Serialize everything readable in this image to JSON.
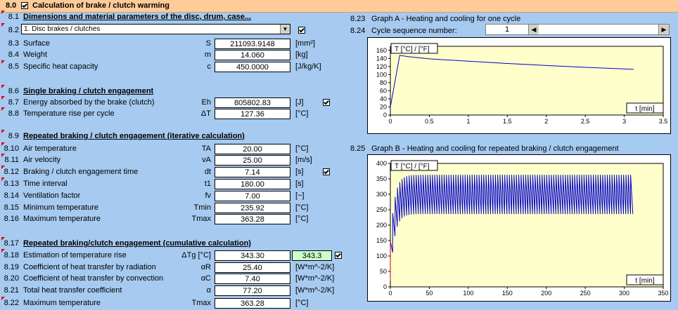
{
  "header": {
    "num": "8.0",
    "title": "Calculation of brake / clutch warming"
  },
  "left": {
    "sec1": {
      "num": "8.1",
      "title": "Dimensions and material parameters of the disc, drum, case..."
    },
    "select_row": {
      "num": "8.2",
      "value": "1. Disc brakes / clutches"
    },
    "rows1": [
      {
        "num": "8.3",
        "label": "Surface",
        "sym": "S",
        "value": "211093.9148",
        "unit": "[mm²]"
      },
      {
        "num": "8.4",
        "label": "Weight",
        "sym": "m",
        "value": "14.060",
        "unit": "[kg]"
      },
      {
        "num": "8.5",
        "label": "Specific heat capacity",
        "sym": "c",
        "value": "450.0000",
        "unit": "[J/kg/K]"
      }
    ],
    "sec2": {
      "num": "8.6",
      "title": "Single braking / clutch engagement"
    },
    "rows2": [
      {
        "num": "8.7",
        "label": "Energy absorbed by the brake (clutch)",
        "sym": "Eh",
        "value": "805802.83",
        "unit": "[J]"
      },
      {
        "num": "8.8",
        "label": "Temperature rise per cycle",
        "sym": "ΔT",
        "value": "127.36",
        "unit": "[°C]"
      }
    ],
    "sec3": {
      "num": "8.9",
      "title": "Repeated braking / clutch engagement (iterative calculation)"
    },
    "rows3": [
      {
        "num": "8.10",
        "label": "Air temperature",
        "sym": "TA",
        "value": "20.00",
        "unit": "[°C]"
      },
      {
        "num": "8.11",
        "label": "Air velocity",
        "sym": "vA",
        "value": "25.00",
        "unit": "[m/s]"
      },
      {
        "num": "8.12",
        "label": "Braking / clutch engagement time",
        "sym": "dt",
        "value": "7.14",
        "unit": "[s]"
      },
      {
        "num": "8.13",
        "label": "Time interval",
        "sym": "t1",
        "value": "180.00",
        "unit": "[s]"
      },
      {
        "num": "8.14",
        "label": "Ventilation factor",
        "sym": "fv",
        "value": "7.00",
        "unit": "[~]"
      },
      {
        "num": "8.15",
        "label": "Minimum temperature",
        "sym": "Tmin",
        "value": "235.92",
        "unit": "[°C]"
      },
      {
        "num": "8.16",
        "label": "Maximum temperature",
        "sym": "Tmax",
        "value": "363.28",
        "unit": "[°C]"
      }
    ],
    "sec4": {
      "num": "8.17",
      "title": "Repeated braking/clutch engagement (cumulative calculation)"
    },
    "rows4": [
      {
        "num": "8.18",
        "label": "Estimation of temperature rise",
        "sym": "ΔTg [°C]",
        "value": "343.30",
        "extra": "343.3"
      },
      {
        "num": "8.19",
        "label": "Coefficient of heat transfer by radiation",
        "sym": "αR",
        "value": "25.40",
        "unit": "[W*m^-2/K]"
      },
      {
        "num": "8.20",
        "label": "Coefficient of heat transfer by convection",
        "sym": "αC",
        "value": "7.40",
        "unit": "[W*m^-2/K]"
      },
      {
        "num": "8.21",
        "label": "Total heat transfer coefficient",
        "sym": "α",
        "value": "77.20",
        "unit": "[W*m^-2/K]"
      },
      {
        "num": "8.22",
        "label": "Maximum temperature",
        "sym": "Tmax",
        "value": "363.28",
        "unit": "[°C]"
      }
    ]
  },
  "right": {
    "graphA": {
      "num": "8.23",
      "title": "Graph A - Heating and cooling for one cycle"
    },
    "cycle": {
      "num": "8.24",
      "label": "Cycle sequence number:",
      "value": "1"
    },
    "graphB": {
      "num": "8.25",
      "title": "Graph B - Heating and cooling for repeated braking / clutch engagement"
    }
  },
  "chart_data": [
    {
      "type": "line",
      "ylabel": "T [°C] / [°F]",
      "xlabel": "t [min]",
      "xlim": [
        0,
        3.5
      ],
      "ylim": [
        0,
        170
      ],
      "xticks": [
        "0",
        "0.5",
        "1",
        "1.5",
        "2",
        "2.5",
        "3",
        "3.5"
      ],
      "yticks": [
        "0",
        "20",
        "40",
        "60",
        "80",
        "100",
        "120",
        "140",
        "160"
      ],
      "series": [
        {
          "x": [
            0,
            0.12,
            0.25,
            0.5,
            1,
            1.5,
            2,
            2.5,
            3,
            3.12
          ],
          "y": [
            20,
            147.4,
            144,
            139,
            133,
            127.5,
            122.5,
            118,
            114,
            113
          ]
        }
      ]
    },
    {
      "type": "line",
      "ylabel": "T [°C] / [°F]",
      "xlabel": "t [min]",
      "xlim": [
        0,
        350
      ],
      "ylim": [
        0,
        400
      ],
      "xticks": [
        "0",
        "50",
        "100",
        "150",
        "200",
        "250",
        "300",
        "350"
      ],
      "yticks": [
        "0",
        "50",
        "100",
        "150",
        "200",
        "250",
        "300",
        "350",
        "400"
      ],
      "cycles": 104,
      "x_end": 311,
      "tmin": 235.92,
      "tmax": 363.28,
      "t_air": 20,
      "rise": 127.36
    }
  ],
  "colors": {
    "background": "#a6caf0",
    "header": "#ffcc99",
    "plot": "#ffffcc",
    "line": "#0000cc",
    "marker": "#e00000",
    "highlight": "#ccffcc"
  }
}
